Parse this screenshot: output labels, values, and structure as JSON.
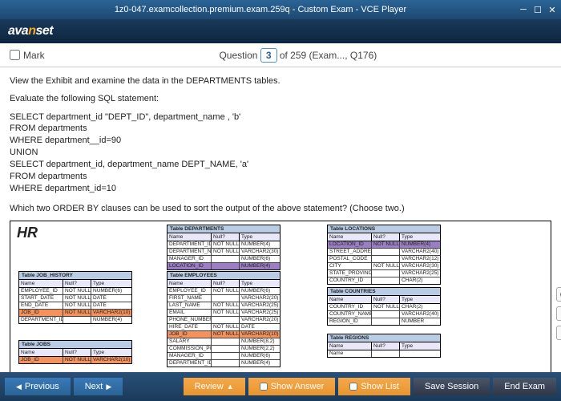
{
  "titlebar": {
    "text": "1z0-047.examcollection.premium.exam.259q - Custom Exam - VCE Player"
  },
  "logo": {
    "pre": "ava",
    "mid": "n",
    "post": "set"
  },
  "header": {
    "mark": "Mark",
    "question": "Question",
    "number": "3",
    "of": "of 259 (Exam..., Q176)"
  },
  "question": {
    "l1": "View the Exhibit and examine the data in the DEPARTMENTS tables.",
    "l2": "Evaluate the following SQL statement:",
    "sql1": "SELECT department_id \"DEPT_ID\", department_name , 'b'",
    "sql2": "FROM departments",
    "sql3": "WHERE department__id=90",
    "sql4": "UNION",
    "sql5": "SELECT department_id, department_name DEPT_NAME, 'a'",
    "sql6": "FROM departments",
    "sql7": "WHERE department_id=10",
    "l3": "Which two ORDER BY clauses can be used to sort the output of the above statement? (Choose two.)"
  },
  "diagram": {
    "hr": "HR",
    "hName": "Name",
    "hNull": "Null?",
    "hType": "Type",
    "departments": {
      "title": "Table DEPARTMENTS",
      "rows": [
        [
          "DEPARTMENT_ID",
          "NOT NULL",
          "NUMBER(4)",
          ""
        ],
        [
          "DEPARTMENT_NAME",
          "NOT NULL",
          "VARCHAR2(30)",
          ""
        ],
        [
          "MANAGER_ID",
          "",
          "NUMBER(6)",
          ""
        ],
        [
          "LOCATION_ID",
          "",
          "NUMBER(4)",
          "purple"
        ]
      ]
    },
    "locations": {
      "title": "Table LOCATIONS",
      "rows": [
        [
          "LOCATION_ID",
          "NOT NULL",
          "NUMBER(4)",
          "purple"
        ],
        [
          "STREET_ADDRESS",
          "",
          "VARCHAR2(40)",
          ""
        ],
        [
          "POSTAL_CODE",
          "",
          "VARCHAR2(12)",
          ""
        ],
        [
          "CITY",
          "NOT NULL",
          "VARCHAR2(30)",
          ""
        ],
        [
          "STATE_PROVINCE",
          "",
          "VARCHAR2(25)",
          ""
        ],
        [
          "COUNTRY_ID",
          "",
          "CHAR(2)",
          ""
        ]
      ]
    },
    "jobhistory": {
      "title": "Table JOB_HISTORY",
      "rows": [
        [
          "EMPLOYEE_ID",
          "NOT NULL",
          "NUMBER(6)",
          ""
        ],
        [
          "START_DATE",
          "NOT NULL",
          "DATE",
          ""
        ],
        [
          "END_DATE",
          "NOT NULL",
          "DATE",
          ""
        ],
        [
          "JOB_ID",
          "NOT NULL",
          "VARCHAR2(10)",
          "orange"
        ],
        [
          "DEPARTMENT_ID",
          "",
          "NUMBER(4)",
          ""
        ]
      ]
    },
    "employees": {
      "title": "Table EMPLOYEES",
      "rows": [
        [
          "EMPLOYEE_ID",
          "NOT NULL",
          "NUMBER(6)",
          ""
        ],
        [
          "FIRST_NAME",
          "",
          "VARCHAR2(20)",
          ""
        ],
        [
          "LAST_NAME",
          "NOT NULL",
          "VARCHAR2(25)",
          ""
        ],
        [
          "EMAIL",
          "NOT NULL",
          "VARCHAR2(25)",
          ""
        ],
        [
          "PHONE_NUMBER",
          "",
          "VARCHAR2(20)",
          ""
        ],
        [
          "HIRE_DATE",
          "NOT NULL",
          "DATE",
          ""
        ],
        [
          "JOB_ID",
          "NOT NULL",
          "VARCHAR2(10)",
          "orange"
        ],
        [
          "SALARY",
          "",
          "NUMBER(8,2)",
          ""
        ],
        [
          "COMMISSION_PCT",
          "",
          "NUMBER(2,2)",
          ""
        ],
        [
          "MANAGER_ID",
          "",
          "NUMBER(6)",
          ""
        ],
        [
          "DEPARTMENT_ID",
          "",
          "NUMBER(4)",
          ""
        ]
      ]
    },
    "countries": {
      "title": "Table COUNTRIES",
      "rows": [
        [
          "COUNTRY_ID",
          "NOT NULL",
          "CHAR(2)",
          ""
        ],
        [
          "COUNTRY_NAME",
          "",
          "VARCHAR2(40)",
          ""
        ],
        [
          "REGION_ID",
          "",
          "NUMBER",
          ""
        ]
      ]
    },
    "regions": {
      "title": "Table REGIONS",
      "rows": [
        [
          "Name",
          "",
          "",
          ""
        ]
      ]
    },
    "jobs": {
      "title": "Table JOBS",
      "rows": [
        [
          "JOB_ID",
          "NOT NULL",
          "VARCHAR2(10)",
          "orange"
        ]
      ]
    }
  },
  "footer": {
    "previous": "Previous",
    "next": "Next",
    "review": "Review",
    "showAnswer": "Show Answer",
    "showList": "Show List",
    "saveSession": "Save Session",
    "endExam": "End Exam"
  }
}
